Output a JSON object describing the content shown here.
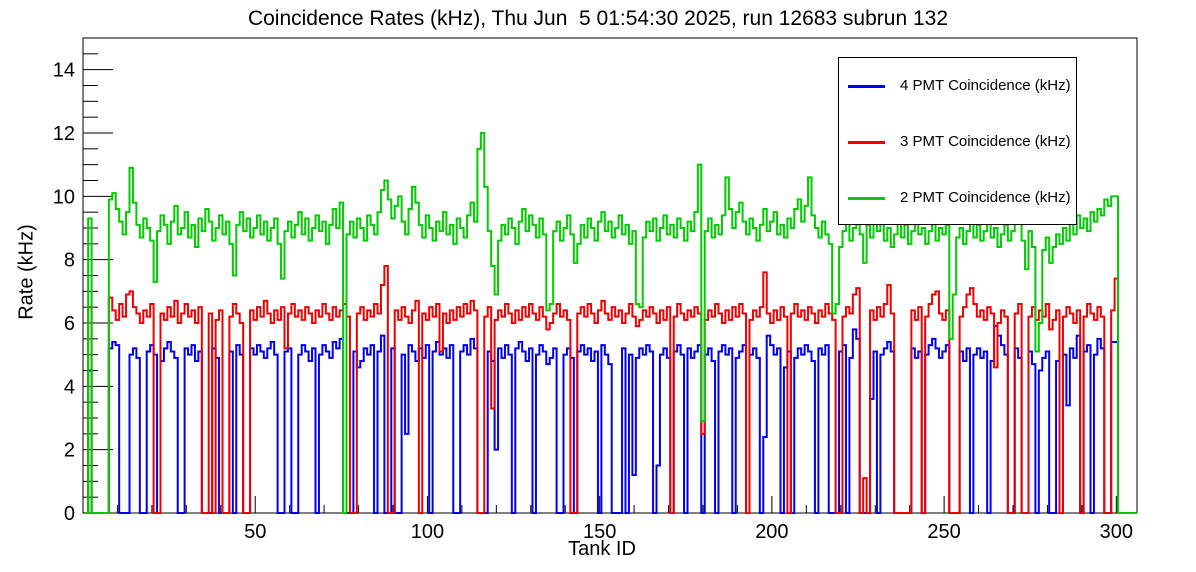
{
  "page_title": "Coincidence Rates (kHz), Thu Jun  5 01:54:30 2025, run 12683 subrun 132",
  "chart_data": {
    "type": "histogram-step",
    "title": "Coincidence Rates (kHz), Thu Jun  5 01:54:30 2025, run 12683 subrun 132",
    "xlabel": "Tank ID",
    "ylabel": "Rate (kHz)",
    "xlim": [
      0,
      306
    ],
    "ylim": [
      0,
      15
    ],
    "x_major_ticks": [
      50,
      100,
      150,
      200,
      250,
      300
    ],
    "x_minor_step": 10,
    "y_major_ticks": [
      0,
      2,
      4,
      6,
      8,
      10,
      12,
      14
    ],
    "y_minor_step": 0.5,
    "bin_start": 1,
    "bin_width": 1,
    "grid": false,
    "legend_position": "top-right",
    "axis_color": "#000000",
    "background_color": "#ffffff",
    "series": [
      {
        "name": "4 PMT Coincidence (kHz)",
        "color": "#0000ee",
        "values": [
          0,
          4.5,
          0,
          0,
          0,
          0,
          0,
          5.2,
          5.4,
          5.3,
          0,
          0,
          0,
          5.0,
          5.2,
          4.9,
          0,
          0,
          5.1,
          5.3,
          5.0,
          0,
          4.8,
          5.2,
          5.4,
          5.1,
          4.9,
          0,
          0,
          5.2,
          5.0,
          5.3,
          4.8,
          5.1,
          0,
          0,
          0,
          5.2,
          4.9,
          0,
          0,
          0,
          5.1,
          0,
          5.3,
          5.0,
          0,
          0,
          5.2,
          5.0,
          5.3,
          5.1,
          4.9,
          5.2,
          5.4,
          5.0,
          0,
          0,
          5.1,
          5.2,
          0,
          0,
          5.0,
          5.3,
          5.1,
          4.8,
          5.2,
          0,
          5.0,
          5.3,
          5.1,
          4.9,
          5.4,
          5.2,
          5.5,
          0,
          0,
          0,
          5.1,
          4.6,
          4.8,
          5.2,
          5.0,
          5.3,
          0,
          5.1,
          5.6,
          0,
          0,
          5.2,
          0,
          0,
          5.0,
          2.5,
          5.3,
          5.1,
          4.8,
          5.2,
          4.9,
          5.3,
          0,
          5.1,
          5.4,
          5.0,
          5.2,
          4.9,
          5.3,
          0,
          0,
          5.1,
          5.3,
          5.0,
          5.5,
          5.2,
          0,
          0,
          0,
          5.1,
          4.8,
          2.0,
          5.2,
          4.9,
          5.3,
          5.0,
          0,
          5.2,
          5.4,
          5.1,
          4.8,
          5.2,
          0,
          5.0,
          5.3,
          5.1,
          4.7,
          4.9,
          5.2,
          0,
          0,
          5.0,
          5.2,
          4.9,
          0,
          5.1,
          5.3,
          5.0,
          5.2,
          4.8,
          5.1,
          0,
          5.3,
          5.0,
          4.7,
          0,
          0,
          0,
          5.2,
          0,
          5.0,
          1.2,
          4.9,
          5.2,
          5.0,
          5.3,
          5.1,
          0,
          1.5,
          5.0,
          5.2,
          4.9,
          0,
          5.1,
          5.3,
          5.0,
          0,
          5.2,
          4.9,
          5.1,
          5.3,
          0,
          5.0,
          5.2,
          4.8,
          0,
          5.1,
          5.3,
          5.0,
          5.2,
          0,
          4.9,
          5.1,
          5.3,
          0,
          5.0,
          5.2,
          4.9,
          0,
          2.4,
          5.6,
          5.3,
          5.0,
          5.2,
          0,
          4.6,
          5.1,
          0,
          4.9,
          5.2,
          5.0,
          5.3,
          5.1,
          4.8,
          0,
          5.2,
          5.0,
          5.3,
          0,
          0,
          0,
          5.1,
          5.3,
          0,
          4.9,
          5.8,
          5.5,
          0,
          0,
          0,
          3.6,
          5.1,
          0,
          5.0,
          5.2,
          5.4,
          5.1,
          0,
          0,
          0,
          0,
          0,
          5.2,
          4.9,
          5.1,
          0,
          5.0,
          5.3,
          5.5,
          5.2,
          4.9,
          5.1,
          5.3,
          0,
          0,
          0,
          5.1,
          4.8,
          5.2,
          0,
          5.0,
          5.2,
          4.9,
          5.1,
          0,
          4.8,
          5.9,
          5.6,
          5.3,
          5.0,
          0,
          0,
          5.2,
          4.9,
          0,
          0,
          5.1,
          4.7,
          0,
          4.5,
          4.9,
          5.1,
          0,
          0,
          4.8,
          0,
          5.0,
          3.4,
          5.2,
          4.9,
          5.6,
          0,
          5.1,
          5.3,
          0,
          5.0,
          5.5,
          5.2,
          0,
          0,
          5.4,
          5.4,
          0,
          0,
          0,
          0,
          0
        ]
      },
      {
        "name": "3 PMT Coincidence (kHz)",
        "color": "#ee0000",
        "values": [
          0,
          6.5,
          0,
          0,
          0,
          0,
          0,
          6.8,
          6.4,
          6.1,
          6.6,
          6.2,
          6.9,
          7.0,
          6.5,
          6.3,
          6.0,
          6.4,
          6.2,
          6.6,
          0,
          0,
          6.3,
          6.1,
          6.5,
          6.2,
          6.7,
          6.0,
          6.3,
          6.6,
          6.2,
          6.4,
          6.0,
          6.5,
          0,
          0,
          6.3,
          0,
          6.1,
          6.4,
          0,
          0,
          6.2,
          6.6,
          6.3,
          6.0,
          0,
          0,
          6.4,
          6.1,
          6.5,
          6.2,
          6.7,
          6.3,
          6.0,
          6.4,
          6.1,
          6.5,
          5.2,
          6.3,
          6.6,
          6.2,
          6.4,
          6.1,
          6.5,
          6.3,
          6.0,
          6.4,
          6.2,
          6.6,
          6.3,
          6.1,
          6.5,
          6.2,
          6.4,
          6.6,
          6.2,
          0,
          0,
          6.3,
          6.5,
          6.1,
          6.4,
          6.2,
          6.6,
          6.3,
          7.2,
          7.8,
          0,
          0,
          6.4,
          6.1,
          6.5,
          6.2,
          6.0,
          6.4,
          6.7,
          0,
          6.3,
          6.1,
          6.5,
          6.2,
          6.6,
          5.1,
          6.3,
          6.0,
          6.4,
          6.1,
          6.5,
          6.2,
          6.6,
          6.3,
          6.7,
          6.4,
          0,
          0,
          6.2,
          6.5,
          3.3,
          6.1,
          6.4,
          6.2,
          6.6,
          6.3,
          6.0,
          6.4,
          6.1,
          6.5,
          6.2,
          6.6,
          6.3,
          6.1,
          6.5,
          6.2,
          5.8,
          6.0,
          6.3,
          6.6,
          6.2,
          6.4,
          6.1,
          0,
          0,
          6.3,
          6.5,
          6.2,
          6.6,
          6.3,
          6.0,
          6.4,
          6.7,
          6.3,
          6.1,
          6.5,
          6.2,
          6.4,
          6.0,
          6.3,
          6.6,
          6.2,
          5.9,
          6.1,
          6.4,
          6.2,
          6.5,
          6.3,
          6.0,
          6.4,
          6.1,
          6.5,
          0,
          6.2,
          6.6,
          6.3,
          6.1,
          6.4,
          6.2,
          6.5,
          6.3,
          2.5,
          6.1,
          6.4,
          6.2,
          6.6,
          6.3,
          6.0,
          6.4,
          6.1,
          6.5,
          6.2,
          6.6,
          6.3,
          0,
          6.1,
          6.4,
          6.2,
          6.5,
          7.6,
          6.3,
          6.0,
          6.4,
          6.1,
          6.5,
          6.2,
          0,
          6.3,
          6.6,
          6.2,
          6.4,
          6.1,
          6.5,
          6.3,
          6.0,
          6.4,
          6.2,
          6.6,
          6.3,
          6.1,
          0,
          0,
          6.2,
          6.5,
          6.3,
          6.9,
          7.1,
          0,
          1.1,
          0,
          6.4,
          6.1,
          6.5,
          6.2,
          6.6,
          7.2,
          6.3,
          0,
          0,
          0,
          0,
          0,
          6.4,
          6.1,
          6.5,
          0,
          6.2,
          6.6,
          6.9,
          7.0,
          6.3,
          6.1,
          6.4,
          0,
          0,
          0,
          6.2,
          6.5,
          6.9,
          7.1,
          6.6,
          6.2,
          6.4,
          6.1,
          6.5,
          6.3,
          4.6,
          6.0,
          6.4,
          6.2,
          0,
          0,
          6.3,
          6.6,
          0,
          0,
          6.2,
          6.5,
          6.1,
          6.4,
          6.2,
          6.6,
          5.8,
          6.1,
          6.4,
          0,
          6.2,
          6.5,
          6.3,
          6.0,
          6.4,
          0,
          6.2,
          6.6,
          6.3,
          6.1,
          6.5,
          6.2,
          0,
          0,
          6.4,
          7.4,
          0,
          0,
          0,
          0,
          0
        ]
      },
      {
        "name": "2 PMT Coincidence (kHz)",
        "color": "#00cc00",
        "values": [
          0,
          9.3,
          0,
          0,
          0,
          0,
          0,
          9.9,
          10.1,
          9.6,
          9.2,
          8.8,
          9.5,
          10.9,
          9.8,
          9.1,
          8.7,
          9.3,
          9.0,
          8.6,
          7.3,
          8.9,
          9.4,
          9.1,
          8.5,
          9.2,
          9.7,
          8.8,
          9.0,
          9.5,
          8.7,
          9.1,
          8.4,
          9.3,
          8.9,
          9.6,
          9.2,
          8.6,
          9.0,
          9.4,
          8.8,
          9.2,
          8.5,
          7.5,
          9.1,
          9.5,
          8.9,
          9.3,
          8.7,
          9.0,
          9.4,
          8.8,
          9.2,
          8.6,
          9.0,
          9.3,
          8.5,
          7.4,
          8.9,
          9.2,
          8.7,
          9.1,
          9.5,
          8.8,
          9.3,
          8.6,
          9.0,
          9.4,
          8.9,
          9.2,
          8.5,
          9.1,
          9.6,
          9.0,
          9.8,
          0,
          8.8,
          9.2,
          8.7,
          9.3,
          9.0,
          8.6,
          9.4,
          9.1,
          8.8,
          9.5,
          10.2,
          10.5,
          9.9,
          9.3,
          9.7,
          10.0,
          9.2,
          8.8,
          9.6,
          10.3,
          9.8,
          9.1,
          8.7,
          9.4,
          9.0,
          8.6,
          9.2,
          8.9,
          9.5,
          8.8,
          9.1,
          8.5,
          9.3,
          9.0,
          8.7,
          9.4,
          9.8,
          9.2,
          11.5,
          12.0,
          10.3,
          8.9,
          7.8,
          6.9,
          8.6,
          9.1,
          8.8,
          9.3,
          9.0,
          8.5,
          9.2,
          9.6,
          8.9,
          9.4,
          9.1,
          8.7,
          9.3,
          8.8,
          6.4,
          6.6,
          8.9,
          9.2,
          8.6,
          9.0,
          9.4,
          8.8,
          7.9,
          8.5,
          9.1,
          8.7,
          9.3,
          9.0,
          8.6,
          9.2,
          9.5,
          8.9,
          9.2,
          8.7,
          9.0,
          9.4,
          8.8,
          9.1,
          8.5,
          8.9,
          6.6,
          6.5,
          8.7,
          9.2,
          8.9,
          9.3,
          8.6,
          9.0,
          9.4,
          8.8,
          9.1,
          8.7,
          9.3,
          9.0,
          8.6,
          9.2,
          8.9,
          9.5,
          11.0,
          2.9,
          8.9,
          9.3,
          8.7,
          9.1,
          8.8,
          9.4,
          10.6,
          9.6,
          9.0,
          9.5,
          9.8,
          9.2,
          8.8,
          9.3,
          9.0,
          8.6,
          9.1,
          9.6,
          8.9,
          9.2,
          9.5,
          8.8,
          9.1,
          8.7,
          9.3,
          9.0,
          9.6,
          9.9,
          9.2,
          9.7,
          10.6,
          9.4,
          9.0,
          8.7,
          9.2,
          8.8,
          8.5,
          6.3,
          6.6,
          8.4,
          8.9,
          9.3,
          8.6,
          9.0,
          9.4,
          8.8,
          7.9,
          9.1,
          8.7,
          9.2,
          8.9,
          9.5,
          8.6,
          9.0,
          8.4,
          8.8,
          9.2,
          8.7,
          9.1,
          8.5,
          8.9,
          9.3,
          8.8,
          9.0,
          8.5,
          8.9,
          9.2,
          8.6,
          9.0,
          8.8,
          9.1,
          5.5,
          6.9,
          8.7,
          9.0,
          8.5,
          8.9,
          9.3,
          8.7,
          9.1,
          8.6,
          8.9,
          9.2,
          8.7,
          9.0,
          8.4,
          8.8,
          9.1,
          8.6,
          8.9,
          9.9,
          9.2,
          8.6,
          7.7,
          8.9,
          8.4,
          5.1,
          6.0,
          8.3,
          8.7,
          7.9,
          8.4,
          8.8,
          8.5,
          9.0,
          8.6,
          9.2,
          8.8,
          9.4,
          9.0,
          9.3,
          8.9,
          9.5,
          9.2,
          9.6,
          9.4,
          9.9,
          9.7,
          10.0,
          10.0,
          0,
          0,
          0,
          0,
          0
        ]
      }
    ]
  }
}
